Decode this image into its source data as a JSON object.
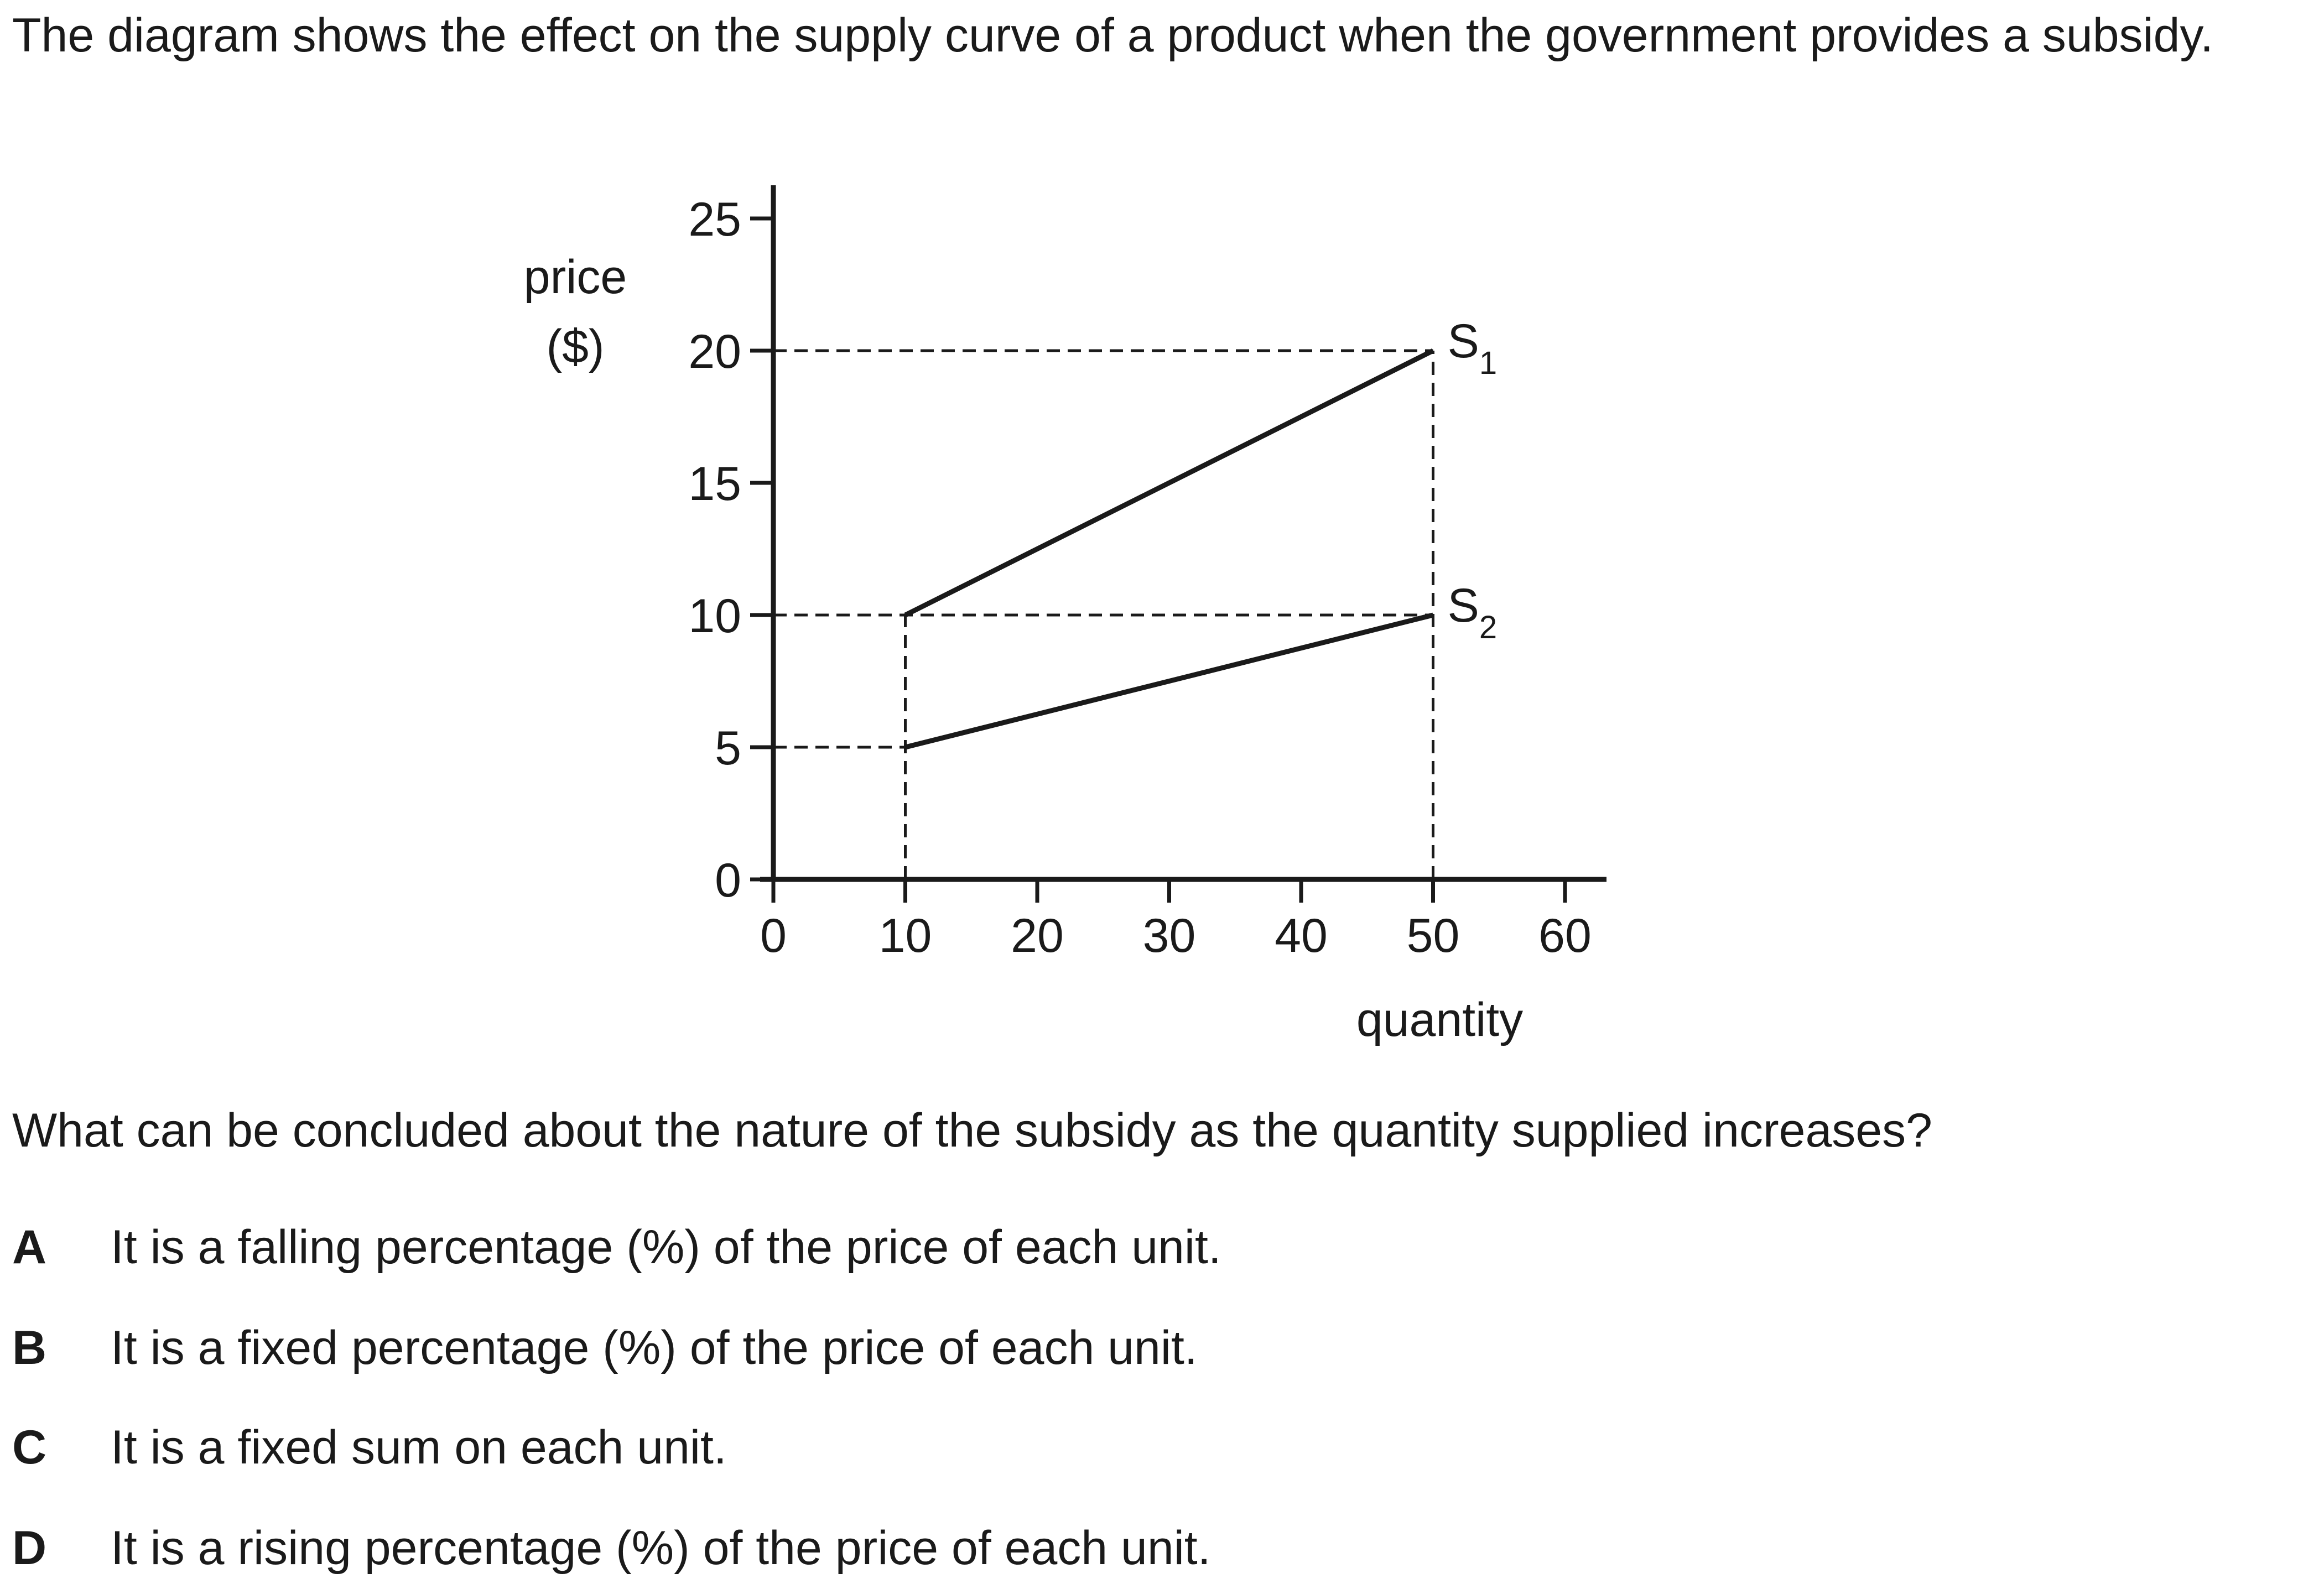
{
  "question": {
    "intro": "The diagram shows the effect on the supply curve of a product when the government provides a subsidy.",
    "prompt": "What can be concluded about the nature of the subsidy as the quantity supplied increases?"
  },
  "chart_data": {
    "type": "line",
    "ylabel_line1": "price",
    "ylabel_line2": "($)",
    "xlabel": "quantity",
    "xlim": [
      0,
      60
    ],
    "ylim": [
      0,
      25
    ],
    "x_ticks": [
      0,
      10,
      20,
      30,
      40,
      50,
      60
    ],
    "y_ticks": [
      0,
      5,
      10,
      15,
      20,
      25
    ],
    "grid": false,
    "series": [
      {
        "name": "S1",
        "label_main": "S",
        "label_sub": "1",
        "points": [
          [
            10,
            10
          ],
          [
            50,
            20
          ]
        ]
      },
      {
        "name": "S2",
        "label_main": "S",
        "label_sub": "2",
        "points": [
          [
            10,
            5
          ],
          [
            50,
            10
          ]
        ]
      }
    ],
    "guides": [
      {
        "from": [
          0,
          20
        ],
        "to": [
          50,
          20
        ]
      },
      {
        "from": [
          0,
          10
        ],
        "to": [
          50,
          10
        ]
      },
      {
        "from": [
          0,
          5
        ],
        "to": [
          10,
          5
        ]
      },
      {
        "from": [
          10,
          0
        ],
        "to": [
          10,
          10
        ]
      },
      {
        "from": [
          50,
          0
        ],
        "to": [
          50,
          20
        ]
      }
    ]
  },
  "options": [
    {
      "letter": "A",
      "text": "It is a falling percentage (%) of the price of each unit."
    },
    {
      "letter": "B",
      "text": "It is a fixed percentage (%) of the price of each unit."
    },
    {
      "letter": "C",
      "text": "It is a fixed sum on each unit."
    },
    {
      "letter": "D",
      "text": "It is a rising percentage (%) of the price of each unit."
    }
  ]
}
